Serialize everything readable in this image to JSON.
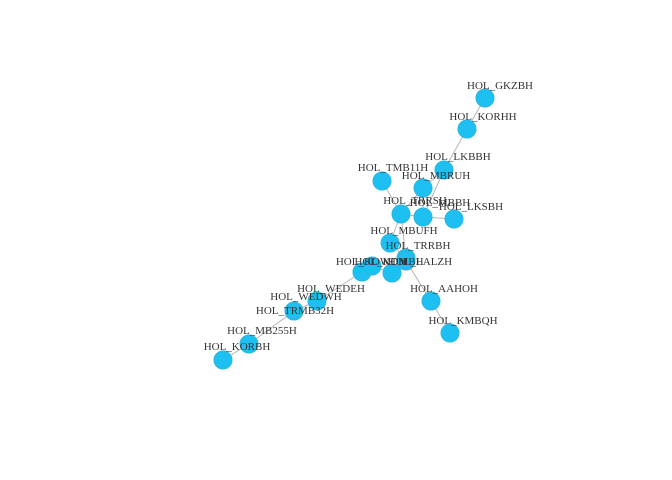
{
  "network": {
    "node_color": "#1ec0f2",
    "edge_color": "#b5b5b5",
    "label_color": "#333333",
    "nodes": [
      {
        "id": "GKZBH",
        "label": "HOL_GKZBH"
      },
      {
        "id": "KORHH",
        "label": "HOL_KORHH"
      },
      {
        "id": "LKBBH",
        "label": "HOL_LKBBH"
      },
      {
        "id": "TMB11H",
        "label": "HOL_TMB11H"
      },
      {
        "id": "MBRUH",
        "label": "HOL_MBRUH"
      },
      {
        "id": "TRRSH",
        "label": "HOL_TRRSH"
      },
      {
        "id": "MBBH",
        "label": "HOL_MBBH"
      },
      {
        "id": "LKSBH",
        "label": "HOL_LKSBH"
      },
      {
        "id": "MBUFH",
        "label": "HOL_MBUFH"
      },
      {
        "id": "TRRBH",
        "label": "HOL_TRRBH"
      },
      {
        "id": "KOMBH",
        "label": "HOL_KOMBH"
      },
      {
        "id": "WEDEH",
        "label": "HOL_WEDEH"
      },
      {
        "id": "KOWDH",
        "label": "HOL_KOWDH"
      },
      {
        "id": "LALZH",
        "label": "HOL_LALZH"
      },
      {
        "id": "AAHOH",
        "label": "HOL_AAHOH"
      },
      {
        "id": "WEDWH",
        "label": "HOL_WEDWH"
      },
      {
        "id": "TRMB32H",
        "label": "HOL_TRMB32H"
      },
      {
        "id": "KMBQH",
        "label": "HOL_KMBQH"
      },
      {
        "id": "MB255H",
        "label": "HOL_MB255H"
      },
      {
        "id": "KORBH",
        "label": "HOL_KORBH"
      }
    ]
  }
}
